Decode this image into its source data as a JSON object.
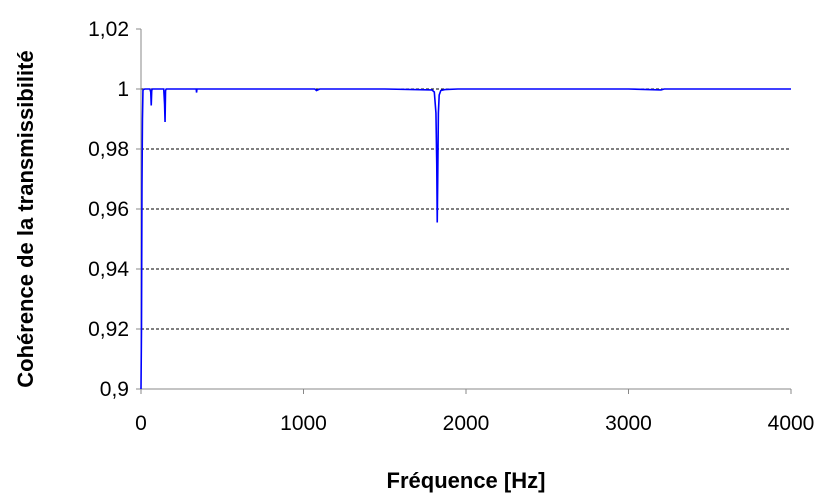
{
  "chart_data": {
    "type": "line",
    "title": "",
    "xlabel": "Fréquence [Hz]",
    "ylabel": "Cohérence de la transmissibilité",
    "xlim": [
      0,
      4000
    ],
    "ylim": [
      0.9,
      1.02
    ],
    "x_ticks": [
      0,
      1000,
      2000,
      3000,
      4000
    ],
    "x_tick_labels": [
      "0",
      "1000",
      "2000",
      "3000",
      "4000"
    ],
    "y_ticks": [
      0.9,
      0.92,
      0.94,
      0.96,
      0.98,
      1.0,
      1.02
    ],
    "y_tick_labels": [
      "0,9",
      "0,92",
      "0,94",
      "0,96",
      "0,98",
      "1",
      "1,02"
    ],
    "grid": "horizontal dashed",
    "legend": "none",
    "series": [
      {
        "color": "#0000ff",
        "x": [
          0,
          3,
          6,
          9,
          12,
          15,
          18,
          25,
          40,
          55,
          60,
          63,
          66,
          70,
          90,
          140,
          145,
          148,
          151,
          155,
          200,
          340,
          342,
          344,
          500,
          800,
          1070,
          1080,
          1100,
          1500,
          1790,
          1805,
          1815,
          1820,
          1823,
          1826,
          1830,
          1835,
          1845,
          1870,
          1950,
          2200,
          2600,
          3000,
          3200,
          3220,
          3400,
          3800,
          4000
        ],
        "y": [
          0.9,
          0.92,
          0.968,
          0.99,
          0.9995,
          0.9998,
          0.9999,
          1.0,
          1.0,
          1.0,
          0.999,
          0.9945,
          0.9995,
          1.0,
          1.0,
          1.0,
          0.995,
          0.989,
          0.9995,
          1.0,
          1.0,
          1.0,
          0.9988,
          1.0,
          1.0,
          1.0,
          1.0,
          0.9995,
          1.0,
          1.0,
          0.9997,
          0.999,
          0.992,
          0.975,
          0.9555,
          0.97,
          0.992,
          0.998,
          0.9995,
          0.9998,
          1.0,
          1.0,
          1.0,
          1.0,
          0.9997,
          1.0,
          1.0,
          1.0,
          1.0
        ]
      }
    ]
  }
}
